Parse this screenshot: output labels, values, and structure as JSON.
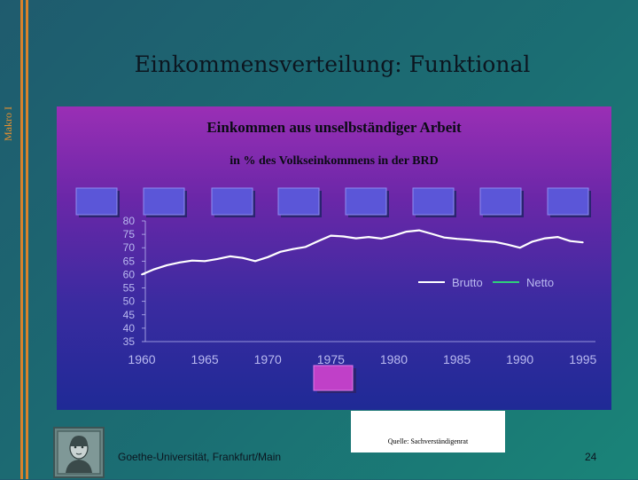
{
  "sidebar": {
    "label": "Makro I"
  },
  "slide": {
    "title": "Einkommensverteilung: Funktional"
  },
  "footer": {
    "source": "Quelle: Sachverständigenrat",
    "institution": "Goethe-Universität, Frankfurt/Main",
    "page": "24"
  },
  "colors": {
    "accent_orange": "#d9822b",
    "brutto_line": "#ffffff",
    "netto_line": "#2fd07a",
    "axis_text": "#b9b9f0",
    "tab": "#5b56d8"
  },
  "chart_data": {
    "type": "line",
    "title": "Einkommen aus unselbständiger Arbeit",
    "subtitle": "in % des Volkseinkommens in der BRD",
    "xlabel": "",
    "ylabel": "",
    "xlim": [
      1960,
      1996
    ],
    "ylim": [
      35,
      80
    ],
    "yticks": [
      "80",
      "75",
      "70",
      "65",
      "60",
      "55",
      "50",
      "45",
      "40",
      "35"
    ],
    "xticks": [
      "1960",
      "1965",
      "1970",
      "1975",
      "1980",
      "1985",
      "1990",
      "1995"
    ],
    "legend": {
      "placement": "right",
      "entries": [
        "Brutto",
        "Netto"
      ]
    },
    "grid": false,
    "series": [
      {
        "name": "Brutto",
        "x": [
          1960,
          1961,
          1962,
          1963,
          1964,
          1965,
          1966,
          1967,
          1968,
          1969,
          1970,
          1971,
          1972,
          1973,
          1974,
          1975,
          1976,
          1977,
          1978,
          1979,
          1980,
          1981,
          1982,
          1983,
          1984,
          1985,
          1986,
          1987,
          1988,
          1989,
          1990,
          1991,
          1992,
          1993,
          1994,
          1995
        ],
        "values": [
          60.0,
          62.0,
          63.5,
          64.5,
          65.2,
          65.0,
          65.8,
          66.8,
          66.2,
          65.0,
          66.5,
          68.5,
          69.5,
          70.3,
          72.5,
          74.5,
          74.2,
          73.5,
          74.0,
          73.4,
          74.5,
          76.0,
          76.5,
          75.2,
          73.8,
          73.3,
          73.0,
          72.5,
          72.2,
          71.2,
          70.0,
          72.3,
          73.5,
          74.0,
          72.5,
          72.0
        ]
      },
      {
        "name": "Netto",
        "x": [],
        "values": []
      }
    ]
  }
}
